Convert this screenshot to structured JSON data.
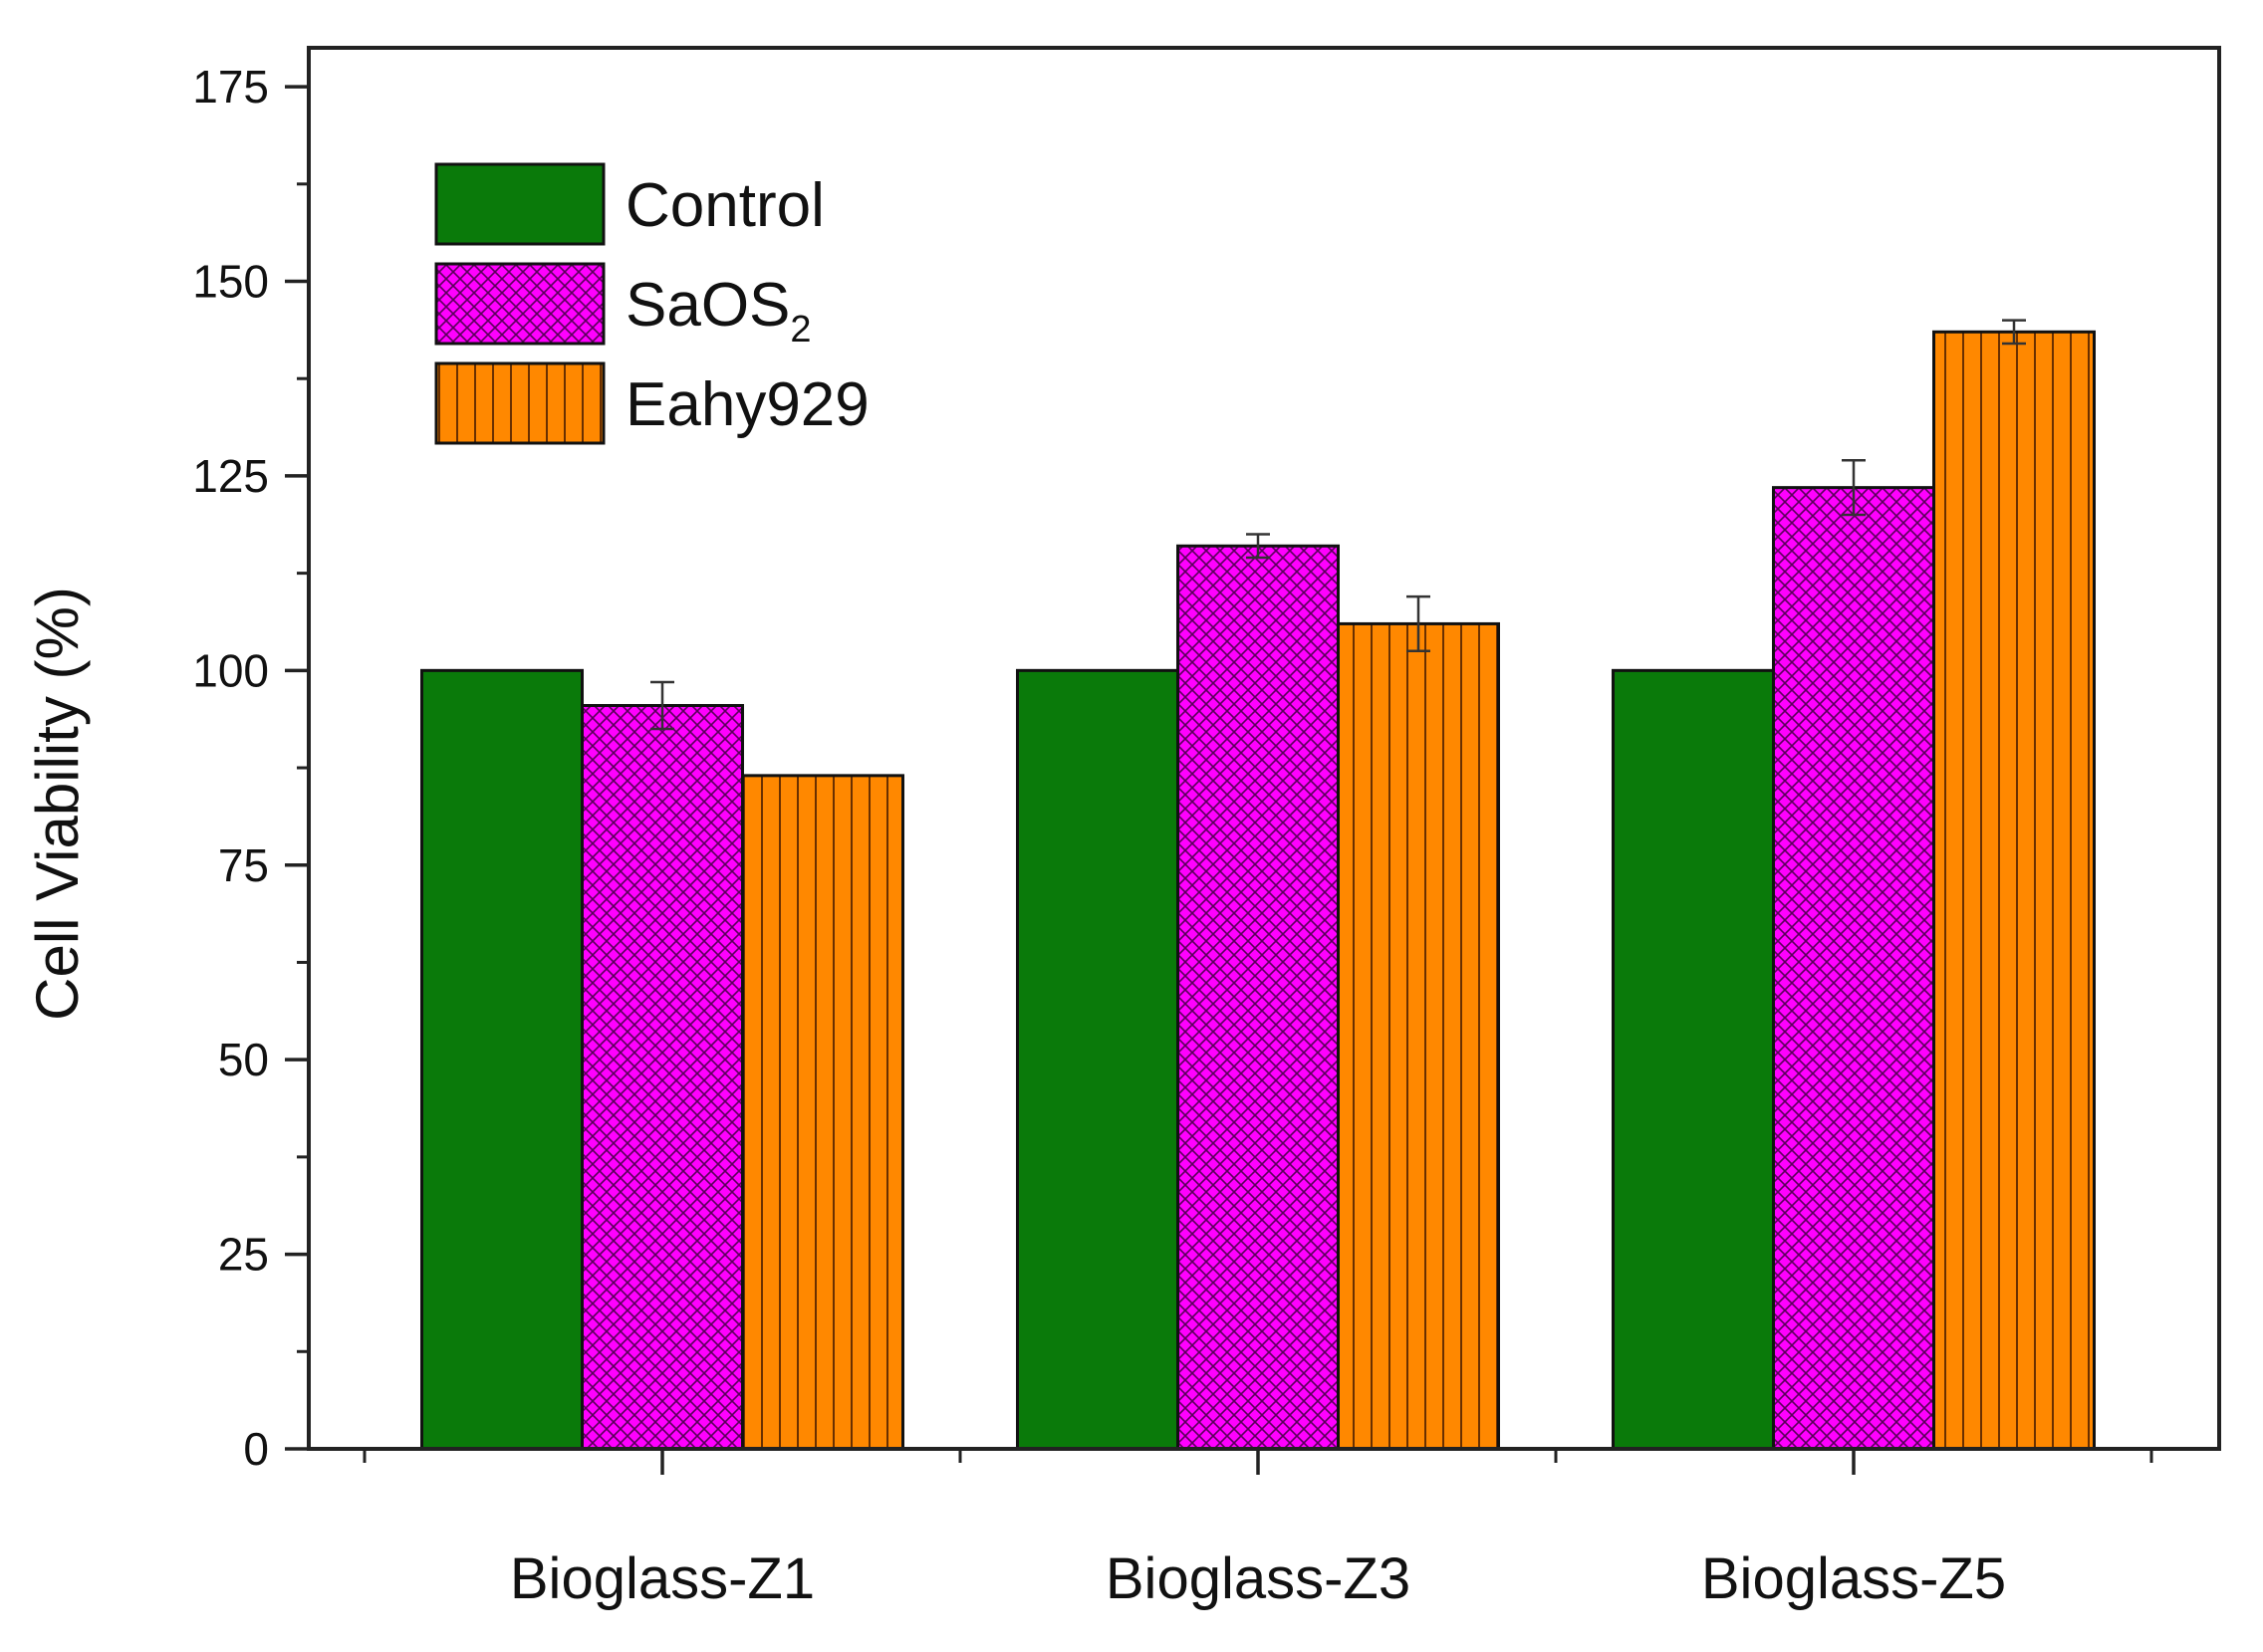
{
  "chart_data": {
    "type": "bar",
    "title": "",
    "xlabel": "",
    "ylabel": "Cell Viability (%)",
    "ylim": [
      0,
      180
    ],
    "yticks": [
      0,
      25,
      50,
      75,
      100,
      125,
      150,
      175
    ],
    "categories": [
      "Bioglass-Z1",
      "Bioglass-Z3",
      "Bioglass-Z5"
    ],
    "series": [
      {
        "name": "Control",
        "legend_main": "Control",
        "legend_sub": "",
        "color": "#0a7a0a",
        "pattern": "solid",
        "values": [
          100,
          100,
          100
        ],
        "errors": [
          0,
          0,
          0
        ]
      },
      {
        "name": "SaOS2",
        "legend_main": "SaOS",
        "legend_sub": "2",
        "color": "#ff00ff",
        "pattern": "crosshatch",
        "values": [
          95.5,
          116,
          123.5
        ],
        "errors": [
          3,
          1.5,
          3.5
        ]
      },
      {
        "name": "Eahy929",
        "legend_main": "Eahy929",
        "legend_sub": "",
        "color": "#ff8800",
        "pattern": "vertical-lines",
        "values": [
          86.5,
          106,
          143.5
        ],
        "errors": [
          0,
          3.5,
          1.5
        ]
      }
    ],
    "legend_position": "top-left",
    "grid": false
  }
}
